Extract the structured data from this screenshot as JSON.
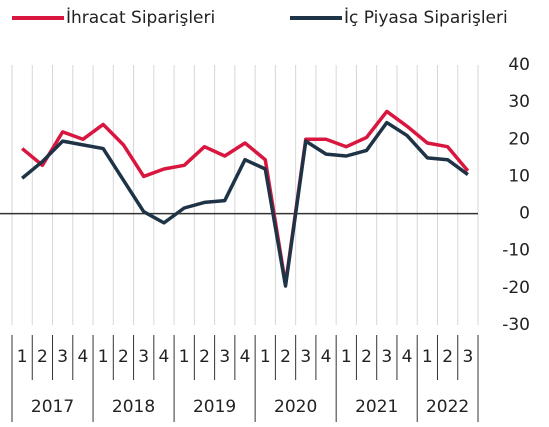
{
  "chart_data": {
    "type": "line",
    "categories": [
      "1",
      "2",
      "3",
      "4",
      "1",
      "2",
      "3",
      "4",
      "1",
      "2",
      "3",
      "4",
      "1",
      "2",
      "3",
      "4",
      "1",
      "2",
      "3",
      "4",
      "1",
      "2",
      "3"
    ],
    "years": [
      "2017",
      "2018",
      "2019",
      "2020",
      "2021",
      "2022"
    ],
    "series": [
      {
        "name": "İhracat Siparişleri",
        "color": "#d9163f",
        "values": [
          17.5,
          13,
          22,
          20,
          24,
          18.5,
          10,
          12,
          13,
          18,
          15.5,
          19,
          14.5,
          -19,
          20,
          20,
          18,
          20.5,
          27.5,
          23.5,
          19,
          18,
          11.5
        ]
      },
      {
        "name": "İç Piyasa Siparişleri",
        "color": "#1f3347",
        "values": [
          9.5,
          14,
          19.5,
          18.5,
          17.5,
          9,
          0.5,
          -2.5,
          1.5,
          3,
          3.5,
          14.5,
          12,
          -19.5,
          19.5,
          16,
          15.5,
          17,
          24.5,
          21,
          15,
          14.5,
          10.5
        ]
      }
    ],
    "ylim": [
      -30,
      40
    ],
    "yticks": [
      40,
      30,
      20,
      10,
      0,
      -10,
      -20,
      -30
    ],
    "grid": true
  }
}
